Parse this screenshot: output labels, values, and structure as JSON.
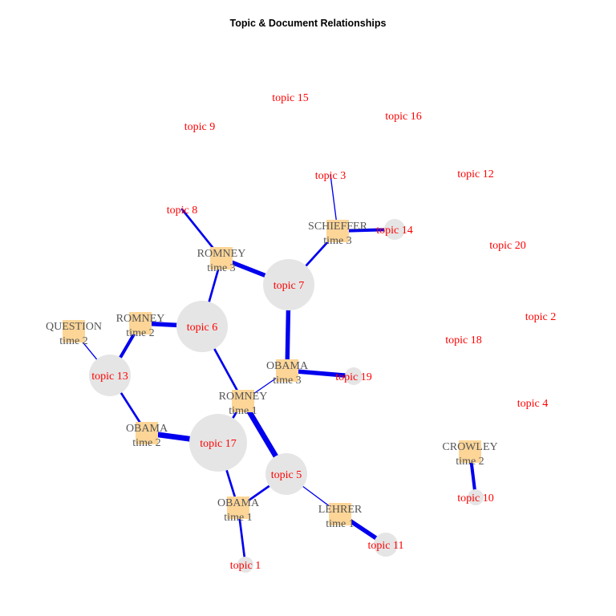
{
  "title": "Topic & Document Relationships",
  "colors": {
    "topic_label": "#ff0000",
    "doc_label": "#555555",
    "topic_node": "#e5e5e5",
    "doc_node": "#fcd597",
    "edge": "#0000ee"
  },
  "nodes": [
    {
      "id": "t1",
      "kind": "topic",
      "label": "topic 1"
    },
    {
      "id": "t2",
      "kind": "topic",
      "label": "topic 2"
    },
    {
      "id": "t3",
      "kind": "topic",
      "label": "topic 3"
    },
    {
      "id": "t4",
      "kind": "topic",
      "label": "topic 4"
    },
    {
      "id": "t5",
      "kind": "topic",
      "label": "topic 5"
    },
    {
      "id": "t6",
      "kind": "topic",
      "label": "topic 6"
    },
    {
      "id": "t7",
      "kind": "topic",
      "label": "topic 7"
    },
    {
      "id": "t8",
      "kind": "topic",
      "label": "topic 8"
    },
    {
      "id": "t9",
      "kind": "topic",
      "label": "topic 9"
    },
    {
      "id": "t10",
      "kind": "topic",
      "label": "topic 10"
    },
    {
      "id": "t11",
      "kind": "topic",
      "label": "topic 11"
    },
    {
      "id": "t12",
      "kind": "topic",
      "label": "topic 12"
    },
    {
      "id": "t13",
      "kind": "topic",
      "label": "topic 13"
    },
    {
      "id": "t14",
      "kind": "topic",
      "label": "topic 14"
    },
    {
      "id": "t15",
      "kind": "topic",
      "label": "topic 15"
    },
    {
      "id": "t16",
      "kind": "topic",
      "label": "topic 16"
    },
    {
      "id": "t17",
      "kind": "topic",
      "label": "topic 17"
    },
    {
      "id": "t18",
      "kind": "topic",
      "label": "topic 18"
    },
    {
      "id": "t19",
      "kind": "topic",
      "label": "topic 19"
    },
    {
      "id": "t20",
      "kind": "topic",
      "label": "topic 20"
    },
    {
      "id": "d_question_t2",
      "kind": "doc",
      "speaker": "QUESTION",
      "time": "time 2"
    },
    {
      "id": "d_romney_t2",
      "kind": "doc",
      "speaker": "ROMNEY",
      "time": "time 2"
    },
    {
      "id": "d_romney_t3",
      "kind": "doc",
      "speaker": "ROMNEY",
      "time": "time 3"
    },
    {
      "id": "d_schieffer_t3",
      "kind": "doc",
      "speaker": "SCHIEFFER",
      "time": "time 3"
    },
    {
      "id": "d_obama_t3",
      "kind": "doc",
      "speaker": "OBAMA",
      "time": "time 3"
    },
    {
      "id": "d_romney_t1",
      "kind": "doc",
      "speaker": "ROMNEY",
      "time": "time 1"
    },
    {
      "id": "d_obama_t2",
      "kind": "doc",
      "speaker": "OBAMA",
      "time": "time 2"
    },
    {
      "id": "d_obama_t1",
      "kind": "doc",
      "speaker": "OBAMA",
      "time": "time 1"
    },
    {
      "id": "d_lehrer_t1",
      "kind": "doc",
      "speaker": "LEHRER",
      "time": "time 1"
    },
    {
      "id": "d_crowley_t2",
      "kind": "doc",
      "speaker": "CROWLEY",
      "time": "time 2"
    }
  ],
  "edges": [
    {
      "from": "d_question_t2",
      "to": "t13",
      "weight": 1
    },
    {
      "from": "d_romney_t2",
      "to": "t13",
      "weight": 3
    },
    {
      "from": "d_romney_t2",
      "to": "t6",
      "weight": 4
    },
    {
      "from": "d_romney_t3",
      "to": "t8",
      "weight": 2
    },
    {
      "from": "d_romney_t3",
      "to": "t7",
      "weight": 4
    },
    {
      "from": "d_romney_t3",
      "to": "t6",
      "weight": 2
    },
    {
      "from": "d_schieffer_t3",
      "to": "t3",
      "weight": 1
    },
    {
      "from": "d_schieffer_t3",
      "to": "t14",
      "weight": 3
    },
    {
      "from": "d_schieffer_t3",
      "to": "t7",
      "weight": 2
    },
    {
      "from": "d_obama_t3",
      "to": "t7",
      "weight": 4
    },
    {
      "from": "d_obama_t3",
      "to": "t19",
      "weight": 4
    },
    {
      "from": "d_obama_t3",
      "to": "d_romney_t1",
      "weight": 1
    },
    {
      "from": "d_romney_t1",
      "to": "t6",
      "weight": 2
    },
    {
      "from": "d_romney_t1",
      "to": "t5",
      "weight": 5
    },
    {
      "from": "d_romney_t1",
      "to": "t17",
      "weight": 2
    },
    {
      "from": "d_obama_t2",
      "to": "t13",
      "weight": 2
    },
    {
      "from": "d_obama_t2",
      "to": "t17",
      "weight": 5
    },
    {
      "from": "d_obama_t1",
      "to": "t17",
      "weight": 2
    },
    {
      "from": "d_obama_t1",
      "to": "t5",
      "weight": 2
    },
    {
      "from": "d_obama_t1",
      "to": "t1",
      "weight": 2
    },
    {
      "from": "d_lehrer_t1",
      "to": "t5",
      "weight": 1
    },
    {
      "from": "d_lehrer_t1",
      "to": "t11",
      "weight": 4
    },
    {
      "from": "d_crowley_t2",
      "to": "t10",
      "weight": 3
    }
  ]
}
